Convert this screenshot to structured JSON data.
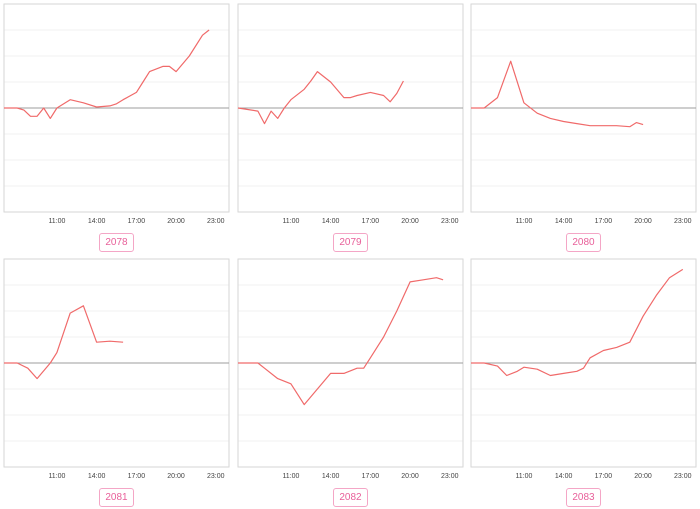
{
  "x_ticks": [
    "11:00",
    "14:00",
    "17:00",
    "20:00",
    "23:00"
  ],
  "colors": {
    "line": "#f06a6a",
    "baseline": "#9e9e9e",
    "frame": "#d6d6d6",
    "grid": "#f0f0f0",
    "tag_border": "#f4a6c6",
    "tag_text": "#e8609a"
  },
  "panels": [
    {
      "tag": "2078"
    },
    {
      "tag": "2079"
    },
    {
      "tag": "2080"
    },
    {
      "tag": "2081"
    },
    {
      "tag": "2082"
    },
    {
      "tag": "2083"
    }
  ],
  "chart_data": [
    {
      "type": "line",
      "title": "",
      "xlabel": "",
      "ylabel": "",
      "series_tag": "2078",
      "x_domain": [
        7,
        24
      ],
      "y_domain": [
        -1,
        1
      ],
      "x": [
        7,
        8,
        8.5,
        9,
        9.5,
        10,
        10.5,
        11,
        12,
        13,
        14,
        15,
        15.5,
        16,
        17,
        17.5,
        18,
        19,
        19.5,
        20,
        21,
        22,
        22.5
      ],
      "values": [
        0,
        0,
        -0.02,
        -0.08,
        -0.08,
        0.0,
        -0.1,
        0.0,
        0.08,
        0.05,
        0.01,
        0.02,
        0.04,
        0.08,
        0.15,
        0.25,
        0.35,
        0.4,
        0.4,
        0.35,
        0.5,
        0.7,
        0.75
      ]
    },
    {
      "type": "line",
      "title": "",
      "xlabel": "",
      "ylabel": "",
      "series_tag": "2079",
      "x_domain": [
        7,
        24
      ],
      "y_domain": [
        -1,
        1
      ],
      "x": [
        7,
        8.5,
        9,
        9.5,
        10,
        10.5,
        11,
        12,
        12.5,
        13,
        14,
        15,
        15.5,
        16,
        17,
        18,
        18.5,
        19,
        19.5
      ],
      "values": [
        0,
        -0.03,
        -0.15,
        -0.03,
        -0.1,
        0.0,
        0.08,
        0.18,
        0.26,
        0.35,
        0.25,
        0.1,
        0.1,
        0.12,
        0.15,
        0.12,
        0.06,
        0.14,
        0.26
      ]
    },
    {
      "type": "line",
      "title": "",
      "xlabel": "",
      "ylabel": "",
      "series_tag": "2080",
      "x_domain": [
        7,
        24
      ],
      "y_domain": [
        -1,
        1
      ],
      "x": [
        7,
        8,
        9,
        10,
        11,
        12,
        13,
        14,
        15,
        16,
        17,
        18,
        19,
        19.5,
        20
      ],
      "values": [
        0,
        0,
        0.1,
        0.45,
        0.05,
        -0.05,
        -0.1,
        -0.13,
        -0.15,
        -0.17,
        -0.17,
        -0.17,
        -0.18,
        -0.14,
        -0.16
      ]
    },
    {
      "type": "line",
      "title": "",
      "xlabel": "",
      "ylabel": "",
      "series_tag": "2081",
      "x_domain": [
        7,
        24
      ],
      "y_domain": [
        -1,
        1
      ],
      "x": [
        7,
        8,
        8.8,
        9.5,
        10.5,
        11,
        12,
        13,
        14,
        15,
        16
      ],
      "values": [
        0,
        0,
        -0.05,
        -0.15,
        0.0,
        0.1,
        0.48,
        0.55,
        0.2,
        0.21,
        0.2
      ]
    },
    {
      "type": "line",
      "title": "",
      "xlabel": "",
      "ylabel": "",
      "series_tag": "2082",
      "x_domain": [
        7,
        24
      ],
      "y_domain": [
        -1,
        1
      ],
      "x": [
        7,
        8.5,
        9,
        10,
        11,
        12,
        13,
        14,
        15,
        16,
        16.5,
        17,
        18,
        19,
        20,
        21,
        22,
        22.5
      ],
      "values": [
        0,
        0,
        -0.05,
        -0.15,
        -0.2,
        -0.4,
        -0.25,
        -0.1,
        -0.1,
        -0.05,
        -0.05,
        0.05,
        0.25,
        0.5,
        0.78,
        0.8,
        0.82,
        0.8
      ]
    },
    {
      "type": "line",
      "title": "",
      "xlabel": "",
      "ylabel": "",
      "series_tag": "2083",
      "x_domain": [
        7,
        24
      ],
      "y_domain": [
        -1,
        1
      ],
      "x": [
        7,
        8,
        9,
        9.7,
        10.5,
        11,
        12,
        13,
        14,
        15,
        15.5,
        16,
        17,
        18,
        19,
        20,
        21,
        22,
        23
      ],
      "values": [
        0,
        0,
        -0.03,
        -0.12,
        -0.08,
        -0.04,
        -0.06,
        -0.12,
        -0.1,
        -0.08,
        -0.05,
        0.05,
        0.12,
        0.15,
        0.2,
        0.45,
        0.65,
        0.82,
        0.9
      ]
    }
  ]
}
